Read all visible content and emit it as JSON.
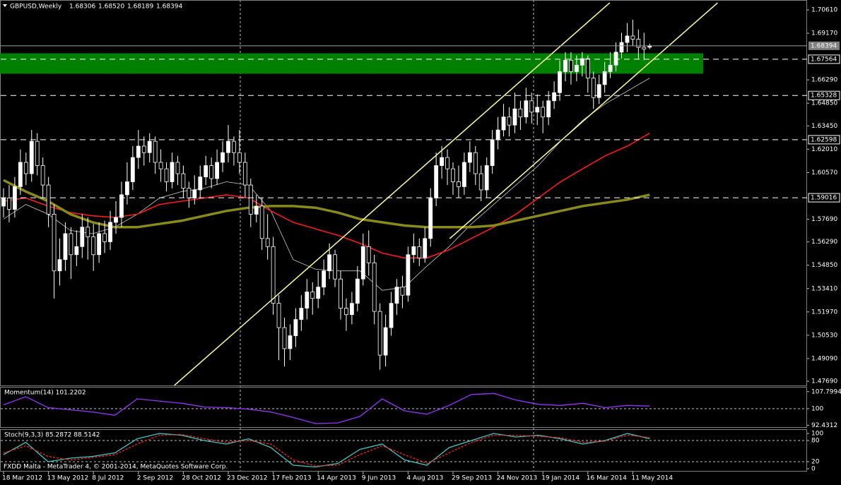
{
  "chart_data": [
    {
      "type": "candlestick",
      "title": "GBPUSD,Weekly",
      "title_values": [
        "1.68306",
        "1.68520",
        "1.68189",
        "1.68394"
      ],
      "categories": [
        "18 Mar 2012",
        null,
        null,
        null,
        null,
        null,
        null,
        null,
        "13 May 2012",
        null,
        null,
        null,
        null,
        null,
        null,
        null,
        "8 Jul 2012",
        null,
        null,
        null,
        null,
        null,
        null,
        null,
        "2 Sep 2012",
        null,
        null,
        null,
        null,
        null,
        null,
        null,
        "28 Oct 2012",
        null,
        null,
        null,
        null,
        null,
        null,
        null,
        "23 Dec 2012",
        null,
        null,
        null,
        null,
        null,
        null,
        null,
        "17 Feb 2013",
        null,
        null,
        null,
        null,
        null,
        null,
        null,
        "14 Apr 2013",
        null,
        null,
        null,
        null,
        null,
        null,
        null,
        "9 Jun 2013",
        null,
        null,
        null,
        null,
        null,
        null,
        null,
        "4 Aug 2013",
        null,
        null,
        null,
        null,
        null,
        null,
        null,
        "29 Sep 2013",
        null,
        null,
        null,
        null,
        null,
        null,
        null,
        "24 Nov 2013",
        null,
        null,
        null,
        null,
        null,
        null,
        null,
        "19 Jan 2014",
        null,
        null,
        null,
        null,
        null,
        null,
        null,
        "16 Mar 2014",
        null,
        null,
        null,
        null,
        null,
        null,
        null,
        "11 May 2014",
        null,
        null,
        null
      ],
      "open": [
        1.585,
        1.59,
        1.583,
        1.597,
        1.612,
        1.605,
        1.625,
        1.61,
        1.598,
        1.58,
        1.545,
        1.552,
        1.568,
        1.555,
        1.56,
        1.572,
        1.566,
        1.555,
        1.568,
        1.563,
        1.575,
        1.578,
        1.592,
        1.6,
        1.615,
        1.622,
        1.618,
        1.625,
        1.612,
        1.608,
        1.6,
        1.612,
        1.605,
        1.596,
        1.59,
        1.595,
        1.603,
        1.61,
        1.602,
        1.612,
        1.618,
        1.625,
        1.618,
        1.612,
        1.598,
        1.58,
        1.585,
        1.565,
        1.56,
        1.525,
        1.51,
        1.497,
        1.505,
        1.515,
        1.522,
        1.532,
        1.528,
        1.535,
        1.545,
        1.555,
        1.54,
        1.522,
        1.518,
        1.525,
        1.54,
        1.56,
        1.55,
        1.52,
        1.493,
        1.51,
        1.525,
        1.535,
        1.53,
        1.555,
        1.56,
        1.553,
        1.565,
        1.59,
        1.61,
        1.615,
        1.608,
        1.6,
        1.597,
        1.612,
        1.618,
        1.605,
        1.595,
        1.61,
        1.626,
        1.632,
        1.64,
        1.635,
        1.645,
        1.64,
        1.65,
        1.643,
        1.646,
        1.64,
        1.65,
        1.655,
        1.668,
        1.675,
        1.668,
        1.672,
        1.676,
        1.664,
        1.652,
        1.66,
        1.668,
        1.672,
        1.68,
        1.686,
        1.69,
        1.688,
        1.683,
        1.68306
      ],
      "high": [
        1.596,
        1.598,
        1.603,
        1.62,
        1.618,
        1.632,
        1.63,
        1.615,
        1.603,
        1.586,
        1.565,
        1.575,
        1.572,
        1.57,
        1.58,
        1.578,
        1.574,
        1.575,
        1.576,
        1.582,
        1.588,
        1.6,
        1.612,
        1.622,
        1.632,
        1.628,
        1.63,
        1.628,
        1.62,
        1.612,
        1.618,
        1.616,
        1.61,
        1.6,
        1.604,
        1.61,
        1.616,
        1.615,
        1.62,
        1.625,
        1.635,
        1.628,
        1.632,
        1.618,
        1.602,
        1.592,
        1.59,
        1.58,
        1.566,
        1.53,
        1.516,
        1.512,
        1.522,
        1.53,
        1.54,
        1.538,
        1.545,
        1.552,
        1.562,
        1.558,
        1.545,
        1.528,
        1.532,
        1.548,
        1.568,
        1.57,
        1.555,
        1.525,
        1.518,
        1.532,
        1.54,
        1.542,
        1.56,
        1.568,
        1.565,
        1.572,
        1.596,
        1.618,
        1.622,
        1.62,
        1.612,
        1.61,
        1.618,
        1.625,
        1.622,
        1.61,
        1.615,
        1.632,
        1.64,
        1.648,
        1.646,
        1.655,
        1.65,
        1.658,
        1.655,
        1.654,
        1.65,
        1.656,
        1.662,
        1.675,
        1.68,
        1.68,
        1.678,
        1.68,
        1.678,
        1.668,
        1.666,
        1.674,
        1.68,
        1.686,
        1.692,
        1.698,
        1.7,
        1.694,
        1.692,
        1.6852
      ],
      "low": [
        1.578,
        1.575,
        1.578,
        1.592,
        1.598,
        1.6,
        1.604,
        1.59,
        1.572,
        1.528,
        1.536,
        1.545,
        1.54,
        1.548,
        1.553,
        1.552,
        1.545,
        1.55,
        1.556,
        1.558,
        1.568,
        1.572,
        1.586,
        1.595,
        1.608,
        1.61,
        1.612,
        1.605,
        1.6,
        1.594,
        1.596,
        1.598,
        1.59,
        1.584,
        1.586,
        1.59,
        1.598,
        1.596,
        1.598,
        1.606,
        1.612,
        1.61,
        1.605,
        1.59,
        1.572,
        1.575,
        1.558,
        1.552,
        1.518,
        1.49,
        1.486,
        1.49,
        1.498,
        1.508,
        1.515,
        1.518,
        1.522,
        1.53,
        1.54,
        1.535,
        1.515,
        1.508,
        1.512,
        1.52,
        1.536,
        1.542,
        1.512,
        1.484,
        1.486,
        1.505,
        1.518,
        1.522,
        1.526,
        1.55,
        1.548,
        1.55,
        1.56,
        1.585,
        1.602,
        1.598,
        1.592,
        1.59,
        1.592,
        1.606,
        1.598,
        1.588,
        1.59,
        1.605,
        1.62,
        1.628,
        1.628,
        1.63,
        1.632,
        1.636,
        1.636,
        1.635,
        1.63,
        1.635,
        1.645,
        1.65,
        1.662,
        1.66,
        1.662,
        1.665,
        1.655,
        1.645,
        1.648,
        1.655,
        1.664,
        1.668,
        1.676,
        1.68,
        1.684,
        1.676,
        1.675,
        1.68189
      ],
      "close": [
        1.59,
        1.583,
        1.597,
        1.612,
        1.605,
        1.625,
        1.61,
        1.598,
        1.58,
        1.545,
        1.552,
        1.568,
        1.555,
        1.56,
        1.572,
        1.566,
        1.555,
        1.568,
        1.563,
        1.575,
        1.578,
        1.592,
        1.6,
        1.615,
        1.622,
        1.618,
        1.625,
        1.612,
        1.608,
        1.6,
        1.612,
        1.605,
        1.596,
        1.59,
        1.595,
        1.603,
        1.61,
        1.602,
        1.612,
        1.618,
        1.625,
        1.618,
        1.612,
        1.598,
        1.58,
        1.585,
        1.565,
        1.56,
        1.525,
        1.51,
        1.497,
        1.505,
        1.515,
        1.522,
        1.532,
        1.528,
        1.535,
        1.545,
        1.555,
        1.54,
        1.522,
        1.518,
        1.525,
        1.54,
        1.56,
        1.55,
        1.52,
        1.493,
        1.51,
        1.525,
        1.535,
        1.53,
        1.555,
        1.56,
        1.553,
        1.565,
        1.59,
        1.61,
        1.615,
        1.608,
        1.6,
        1.597,
        1.612,
        1.618,
        1.605,
        1.595,
        1.61,
        1.626,
        1.632,
        1.64,
        1.635,
        1.645,
        1.64,
        1.65,
        1.643,
        1.646,
        1.64,
        1.65,
        1.655,
        1.668,
        1.675,
        1.668,
        1.672,
        1.676,
        1.664,
        1.652,
        1.66,
        1.668,
        1.672,
        1.68,
        1.686,
        1.69,
        1.688,
        1.683,
        1.682,
        1.68394
      ],
      "up_color": "#ffffff",
      "down_color": "#000000",
      "wick_color": "#ffffff",
      "lines": [
        {
          "color": "#c8c8c8",
          "width": 0.8,
          "values": [
            1.577,
            1.586,
            1.58,
            1.57,
            1.568,
            1.572,
            1.58,
            1.59,
            1.594,
            1.596,
            1.6,
            1.598,
            1.582,
            1.552,
            1.546,
            1.545,
            1.545,
            1.533,
            1.535,
            1.548,
            1.56,
            1.574,
            1.586,
            1.598,
            1.61,
            1.625,
            1.638,
            1.648,
            1.656,
            1.664
          ]
        },
        {
          "color": "#ff1a1a",
          "width": 1.6,
          "values": [
            1.588,
            1.59,
            1.585,
            1.581,
            1.579,
            1.578,
            1.58,
            1.586,
            1.588,
            1.59,
            1.592,
            1.59,
            1.582,
            1.575,
            1.571,
            1.567,
            1.562,
            1.556,
            1.553,
            1.553,
            1.558,
            1.565,
            1.572,
            1.58,
            1.59,
            1.6,
            1.608,
            1.616,
            1.622,
            1.63
          ]
        },
        {
          "color": "#8a8a1a",
          "width": 3.5,
          "values": [
            1.601,
            1.594,
            1.588,
            1.58,
            1.575,
            1.572,
            1.572,
            1.574,
            1.576,
            1.579,
            1.582,
            1.584,
            1.585,
            1.585,
            1.584,
            1.581,
            1.577,
            1.575,
            1.573,
            1.572,
            1.572,
            1.572,
            1.573,
            1.576,
            1.579,
            1.582,
            1.585,
            1.587,
            1.589,
            1.592
          ]
        }
      ],
      "channels": [
        {
          "color": "#ffff99",
          "x": [
            30.4,
            107.9
          ],
          "y": [
            1.4743,
            1.7105
          ]
        },
        {
          "color": "#ffff99",
          "x": [
            79.4,
            127.1
          ],
          "y": [
            1.5649,
            1.7105
          ]
        }
      ],
      "zone": [
        1.6667,
        1.6793
      ],
      "zone_color": "#008000",
      "current_price": {
        "value": 1.68394,
        "label": "1.68394"
      },
      "levels": [
        {
          "value": 1.67564,
          "label": "1.67564"
        },
        {
          "value": 1.65328,
          "label": "1.65328"
        },
        {
          "value": 1.62598,
          "label": "1.62598"
        },
        {
          "value": 1.59016,
          "label": "1.59016"
        }
      ],
      "ylim": [
        1.4743,
        1.7122
      ],
      "yticks": [
        {
          "value": 1.7061,
          "label": "1.70610"
        },
        {
          "value": 1.6917,
          "label": "1.69170"
        },
        {
          "value": 1.6629,
          "label": "1.66290"
        },
        {
          "value": 1.6485,
          "label": "1.64850"
        },
        {
          "value": 1.6345,
          "label": "1.63450"
        },
        {
          "value": 1.6201,
          "label": "1.62010"
        },
        {
          "value": 1.6057,
          "label": "1.60570"
        },
        {
          "value": 1.5769,
          "label": "1.57690"
        },
        {
          "value": 1.5629,
          "label": "1.56290"
        },
        {
          "value": 1.5485,
          "label": "1.54850"
        },
        {
          "value": 1.5341,
          "label": "1.53410"
        },
        {
          "value": 1.5197,
          "label": "1.51970"
        },
        {
          "value": 1.5053,
          "label": "1.50530"
        },
        {
          "value": 1.4909,
          "label": "1.49090"
        },
        {
          "value": 1.4769,
          "label": "1.47690"
        }
      ]
    },
    {
      "type": "line",
      "title": "Momentum(14) 101.2202",
      "series": [
        {
          "color": "#9933ff",
          "dash": false,
          "values": [
            101.8,
            105.5,
            100.5,
            99.5,
            98.5,
            97.0,
            104.5,
            103.5,
            102.5,
            100.8,
            100.5,
            99.8,
            98.5,
            96.0,
            93.2,
            93.5,
            96.5,
            104.5,
            99.0,
            97.5,
            101.5,
            106.5,
            107.0,
            104.0,
            102.0,
            101.5,
            102.5,
            100.5,
            101.5,
            101.2202
          ]
        }
      ],
      "ylim": [
        91.58,
        109.67
      ],
      "yticks": [
        92.4312,
        100,
        107.7994
      ],
      "levels": [
        100
      ]
    },
    {
      "type": "line",
      "title": "Stoch(9,3,3) 85.2872 88.5142",
      "series": [
        {
          "color": "#40c8c8",
          "dash": false,
          "values": [
            40,
            75,
            20,
            30,
            35,
            45,
            85,
            100,
            95,
            80,
            70,
            85,
            60,
            10,
            5,
            15,
            55,
            70,
            25,
            10,
            60,
            80,
            100,
            90,
            95,
            85,
            70,
            80,
            100,
            85.2872
          ]
        },
        {
          "color": "#ff2020",
          "dash": true,
          "values": [
            45,
            65,
            35,
            25,
            32,
            40,
            70,
            95,
            97,
            85,
            75,
            80,
            70,
            25,
            8,
            10,
            40,
            65,
            40,
            15,
            45,
            75,
            95,
            95,
            92,
            88,
            75,
            78,
            95,
            88.5142
          ]
        }
      ],
      "ylim": [
        -8,
        110
      ],
      "yticks": [
        0,
        20,
        80,
        100
      ],
      "levels": [
        20,
        80
      ]
    }
  ],
  "footer": "FXDD Malta - MetaTrader 4, © 2001-2014, MetaQuotes Software Corp."
}
